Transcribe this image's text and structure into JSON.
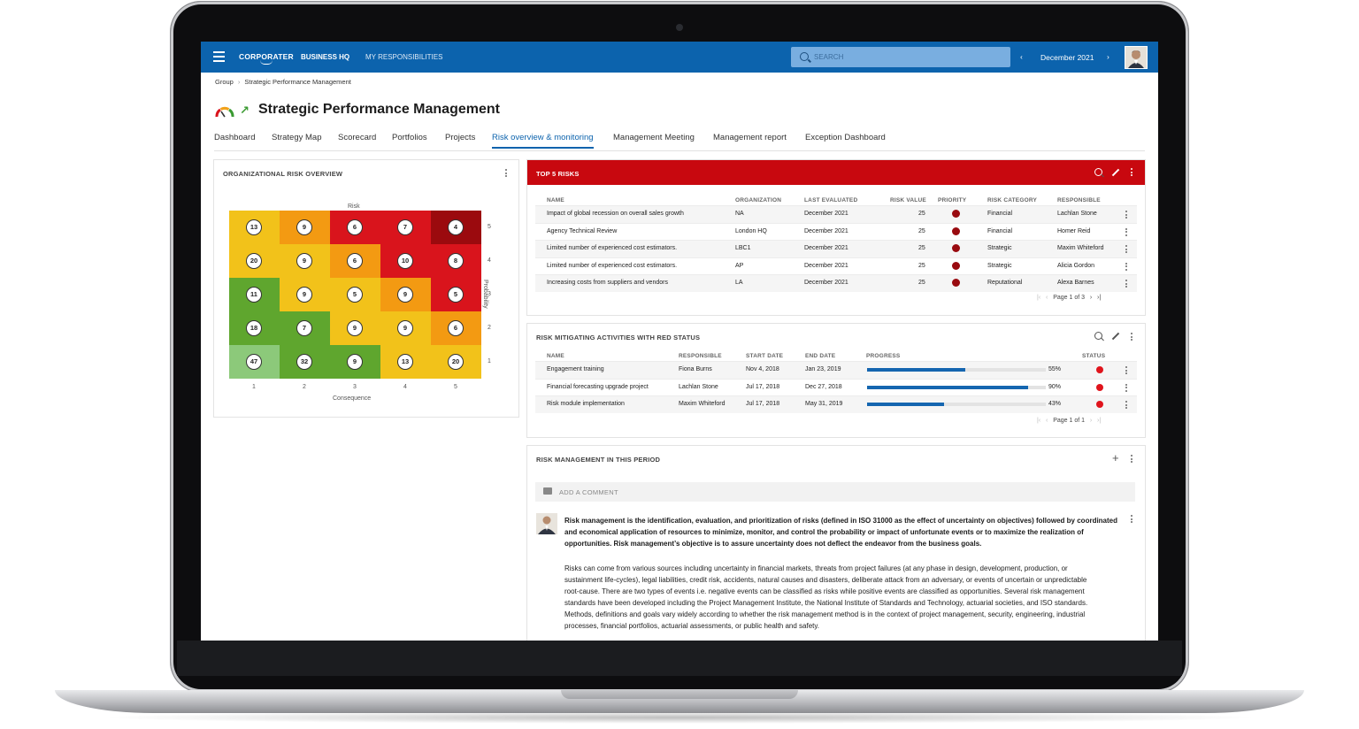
{
  "topbar": {
    "logo": "CORPORATER",
    "nav": [
      "BUSINESS HQ",
      "MY RESPONSIBILITIES"
    ],
    "search_placeholder": "SEARCH",
    "period": "December 2021",
    "accent": "#0c63ad"
  },
  "breadcrumb": [
    "Group",
    "Strategic Performance Management"
  ],
  "page_title": "Strategic Performance Management",
  "tabs": [
    "Dashboard",
    "Strategy Map",
    "Scorecard",
    "Portfolios",
    "Projects",
    "Risk overview & monitoring",
    "Management Meeting",
    "Management report",
    "Exception Dashboard"
  ],
  "active_tab": 5,
  "risk_overview": {
    "title": "ORGANIZATIONAL RISK OVERVIEW",
    "top_label": "Risk",
    "x_label": "Consequence",
    "y_label": "Probability",
    "x_ticks": [
      "1",
      "2",
      "3",
      "4",
      "5"
    ],
    "y_ticks": [
      "5",
      "4",
      "3",
      "2",
      "1"
    ],
    "rows": [
      [
        {
          "v": "13",
          "c": "#f2c21a"
        },
        {
          "v": "9",
          "c": "#f39a12"
        },
        {
          "v": "6",
          "c": "#d9141c"
        },
        {
          "v": "7",
          "c": "#d9141c"
        },
        {
          "v": "4",
          "c": "#9b0a0e"
        }
      ],
      [
        {
          "v": "20",
          "c": "#f2c21a"
        },
        {
          "v": "9",
          "c": "#f2c21a"
        },
        {
          "v": "6",
          "c": "#f39a12"
        },
        {
          "v": "10",
          "c": "#d9141c"
        },
        {
          "v": "8",
          "c": "#d9141c"
        }
      ],
      [
        {
          "v": "11",
          "c": "#5fa62e"
        },
        {
          "v": "9",
          "c": "#f2c21a"
        },
        {
          "v": "5",
          "c": "#f2c21a"
        },
        {
          "v": "9",
          "c": "#f39a12"
        },
        {
          "v": "5",
          "c": "#d9141c"
        }
      ],
      [
        {
          "v": "18",
          "c": "#5fa62e"
        },
        {
          "v": "7",
          "c": "#5fa62e"
        },
        {
          "v": "9",
          "c": "#f2c21a"
        },
        {
          "v": "9",
          "c": "#f2c21a"
        },
        {
          "v": "6",
          "c": "#f39a12"
        }
      ],
      [
        {
          "v": "47",
          "c": "#8cc97a"
        },
        {
          "v": "32",
          "c": "#5fa62e"
        },
        {
          "v": "9",
          "c": "#5fa62e"
        },
        {
          "v": "13",
          "c": "#f2c21a"
        },
        {
          "v": "20",
          "c": "#f2c21a"
        }
      ]
    ]
  },
  "top5": {
    "title": "TOP 5 RISKS",
    "header_color": "#c8080f",
    "columns": [
      "NAME",
      "ORGANIZATION",
      "LAST EVALUATED",
      "RISK VALUE",
      "PRIORITY",
      "RISK CATEGORY",
      "RESPONSIBLE"
    ],
    "rows": [
      {
        "name": "Impact of global recession on overall sales growth",
        "org": "NA",
        "date": "December 2021",
        "value": "25",
        "category": "Financial",
        "responsible": "Lachlan Stone"
      },
      {
        "name": "Agency Technical Review",
        "org": "London HQ",
        "date": "December 2021",
        "value": "25",
        "category": "Financial",
        "responsible": "Homer Reid"
      },
      {
        "name": "Limited number of experienced cost estimators.",
        "org": "LBC1",
        "date": "December 2021",
        "value": "25",
        "category": "Strategic",
        "responsible": "Maxim Whiteford"
      },
      {
        "name": "Limited number of experienced cost estimators.",
        "org": "AP",
        "date": "December 2021",
        "value": "25",
        "category": "Strategic",
        "responsible": "Alicia Gordon"
      },
      {
        "name": "Increasing costs from suppliers and vendors",
        "org": "LA",
        "date": "December 2021",
        "value": "25",
        "category": "Reputational",
        "responsible": "Alexa Barnes"
      }
    ],
    "pager": "Page 1 of 3"
  },
  "mitigating": {
    "title": "RISK MITIGATING ACTIVITIES WITH RED STATUS",
    "columns": [
      "NAME",
      "RESPONSIBLE",
      "START DATE",
      "END DATE",
      "PROGRESS",
      "STATUS"
    ],
    "rows": [
      {
        "name": "Engagement training",
        "responsible": "Fiona Burns",
        "start": "Nov 4, 2018",
        "end": "Jan 23, 2019",
        "progress": 0.55,
        "progress_label": "55%"
      },
      {
        "name": "Financial forecasting upgrade project",
        "responsible": "Lachlan Stone",
        "start": "Jul 17, 2018",
        "end": "Dec 27, 2018",
        "progress": 0.9,
        "progress_label": "90%"
      },
      {
        "name": "Risk module implementation",
        "responsible": "Maxim Whiteford",
        "start": "Jul 17, 2018",
        "end": "May 31, 2019",
        "progress": 0.43,
        "progress_label": "43%"
      }
    ],
    "pager": "Page 1 of 1"
  },
  "period_mgmt": {
    "title": "RISK MANAGEMENT IN THIS PERIOD",
    "comment_placeholder": "ADD A COMMENT",
    "para1": [
      "Risk management is the identification, evaluation, and prioritization of risks (defined in ISO 31000 as the effect of uncertainty on objectives) followed by coordinated",
      "and economical application of resources to minimize, monitor, and control the probability or impact of unfortunate events or to maximize the realization of",
      "opportunities. Risk management’s objective is to assure uncertainty does not deflect the endeavor from the business goals."
    ],
    "para2": [
      "Risks can come from various sources including uncertainty in financial markets, threats from project failures (at any phase in design, development, production, or",
      "sustainment life-cycles), legal liabilities, credit risk, accidents, natural causes and disasters, deliberate attack from an adversary, or events of uncertain or unpredictable",
      "root-cause. There are two types of events i.e. negative events can be classified as risks while positive events are classified as opportunities. Several risk management",
      "standards have been developed including the Project Management Institute, the National Institute of Standards and Technology, actuarial societies, and ISO standards.",
      "Methods, definitions and goals vary widely according to whether the risk management method is in the context of project management, security, engineering, industrial",
      "processes, financial portfolios, actuarial assessments, or public health and safety."
    ]
  }
}
